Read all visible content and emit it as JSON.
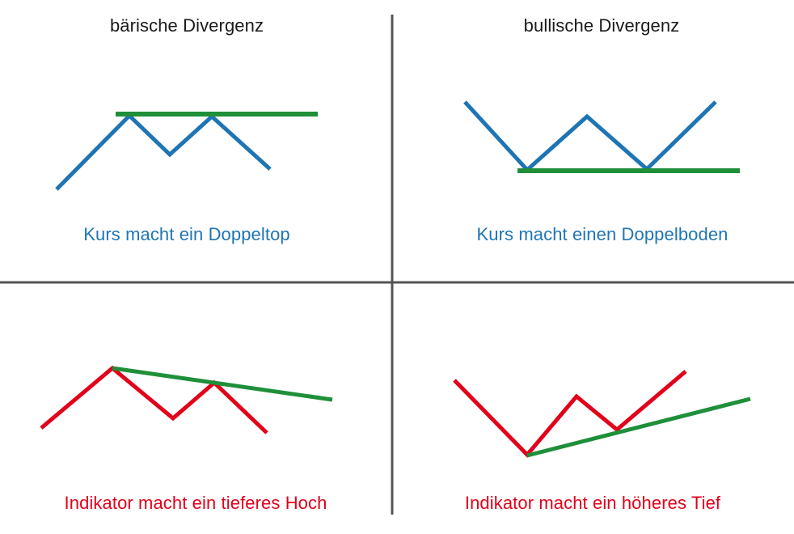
{
  "headers": {
    "left": "bärische Divergenz",
    "right": "bullische Divergenz"
  },
  "captions": {
    "top_left": "Kurs macht ein Doppeltop",
    "top_right": "Kurs macht einen Doppelboden",
    "bottom_left": "Indikator macht ein tieferes Hoch",
    "bottom_right": "Indikator macht ein höheres Tief"
  },
  "colors": {
    "divider": "#555555",
    "price_line": "#1f75b4",
    "indicator_line": "#e2001a",
    "trend_line": "#1f8f3a",
    "header_text": "#1a1a1a"
  }
}
